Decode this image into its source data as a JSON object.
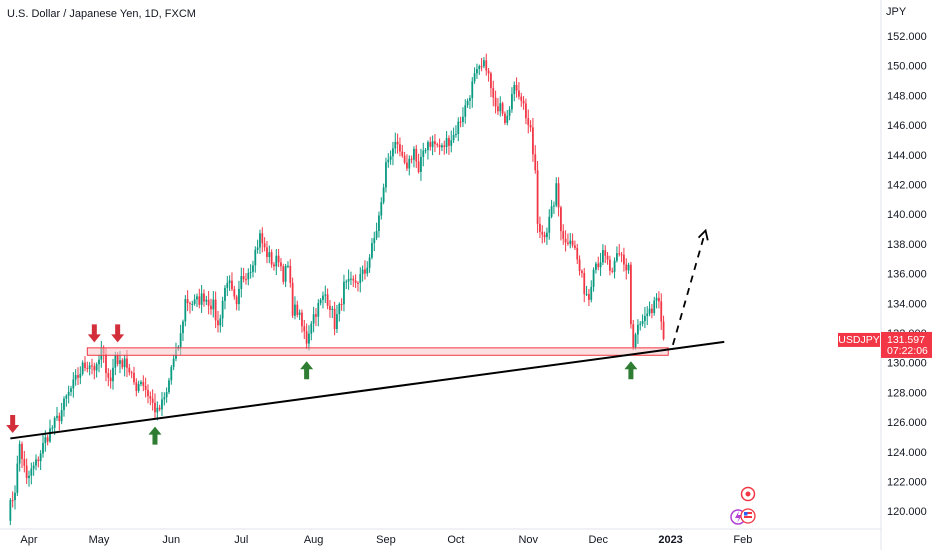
{
  "chart_data": {
    "type": "candlestick",
    "title": "U.S. Dollar / Japanese Yen, 1D, FXCM",
    "axis_unit": "JPY",
    "y_ticks": [
      "120.000",
      "122.000",
      "124.000",
      "126.000",
      "128.000",
      "130.000",
      "132.000",
      "134.000",
      "136.000",
      "138.000",
      "140.000",
      "142.000",
      "144.000",
      "146.000",
      "148.000",
      "150.000",
      "152.000"
    ],
    "ylim": [
      118.7,
      153.6
    ],
    "x_ticks": [
      {
        "label": "Apr",
        "day": 9
      },
      {
        "label": "May",
        "day": 39
      },
      {
        "label": "Jun",
        "day": 70
      },
      {
        "label": "Jul",
        "day": 100
      },
      {
        "label": "Aug",
        "day": 131
      },
      {
        "label": "Sep",
        "day": 162
      },
      {
        "label": "Oct",
        "day": 192
      },
      {
        "label": "Nov",
        "day": 223
      },
      {
        "label": "Dec",
        "day": 253
      },
      {
        "label": "2023",
        "day": 284,
        "bold": true
      },
      {
        "label": "Feb",
        "day": 315
      }
    ],
    "xlim": [
      0,
      325
    ],
    "grid": false,
    "price_label": {
      "symbol": "USDJPY",
      "value": "131.597",
      "countdown": "07:22:06",
      "price": 131.6
    },
    "series_path": [
      [
        0,
        119.8
      ],
      [
        3,
        121.5
      ],
      [
        5,
        124.5
      ],
      [
        8,
        122.0
      ],
      [
        10,
        122.7
      ],
      [
        12,
        123.2
      ],
      [
        16,
        124.8
      ],
      [
        18,
        125.4
      ],
      [
        22,
        126.4
      ],
      [
        25,
        127.6
      ],
      [
        28,
        128.5
      ],
      [
        32,
        129.7
      ],
      [
        35,
        130.0
      ],
      [
        38,
        129.5
      ],
      [
        40,
        130.8
      ],
      [
        42,
        129.7
      ],
      [
        44,
        128.7
      ],
      [
        46,
        130.6
      ],
      [
        48,
        129.8
      ],
      [
        50,
        130.4
      ],
      [
        52,
        129.2
      ],
      [
        55,
        128.4
      ],
      [
        57,
        128.9
      ],
      [
        60,
        127.9
      ],
      [
        62,
        127.2
      ],
      [
        64,
        126.6
      ],
      [
        66,
        127.2
      ],
      [
        68,
        127.9
      ],
      [
        70,
        129.7
      ],
      [
        72,
        130.5
      ],
      [
        74,
        131.8
      ],
      [
        76,
        134.2
      ],
      [
        80,
        134.0
      ],
      [
        84,
        134.5
      ],
      [
        88,
        133.8
      ],
      [
        90,
        132.4
      ],
      [
        92,
        134.2
      ],
      [
        94,
        135.7
      ],
      [
        96,
        134.6
      ],
      [
        98,
        133.6
      ],
      [
        100,
        135.6
      ],
      [
        104,
        136.5
      ],
      [
        108,
        138.5
      ],
      [
        110,
        137.6
      ],
      [
        114,
        136.6
      ],
      [
        116,
        137.1
      ],
      [
        118,
        135.9
      ],
      [
        120,
        136.4
      ],
      [
        122,
        133.6
      ],
      [
        124,
        133.5
      ],
      [
        126,
        132.4
      ],
      [
        128,
        131.5
      ],
      [
        130,
        132.9
      ],
      [
        132,
        133.5
      ],
      [
        136,
        134.6
      ],
      [
        138,
        133.9
      ],
      [
        140,
        132.6
      ],
      [
        142,
        133.6
      ],
      [
        144,
        135.1
      ],
      [
        148,
        135.3
      ],
      [
        150,
        135.6
      ],
      [
        153,
        136.1
      ],
      [
        156,
        137.7
      ],
      [
        158,
        139.0
      ],
      [
        160,
        140.6
      ],
      [
        162,
        143.3
      ],
      [
        165,
        144.6
      ],
      [
        168,
        144.1
      ],
      [
        170,
        143.1
      ],
      [
        172,
        143.6
      ],
      [
        174,
        144.4
      ],
      [
        176,
        142.6
      ],
      [
        178,
        144.3
      ],
      [
        180,
        144.9
      ],
      [
        183,
        144.7
      ],
      [
        186,
        144.4
      ],
      [
        188,
        144.9
      ],
      [
        191,
        145.3
      ],
      [
        194,
        146.4
      ],
      [
        196,
        147.2
      ],
      [
        198,
        148.2
      ],
      [
        200,
        149.2
      ],
      [
        203,
        149.8
      ],
      [
        205,
        150.1
      ],
      [
        207,
        148.4
      ],
      [
        209,
        146.9
      ],
      [
        211,
        147.8
      ],
      [
        213,
        146.5
      ],
      [
        216,
        148.0
      ],
      [
        218,
        148.6
      ],
      [
        220,
        147.9
      ],
      [
        222,
        146.7
      ],
      [
        224,
        145.4
      ],
      [
        226,
        142.8
      ],
      [
        227,
        139.1
      ],
      [
        229,
        138.7
      ],
      [
        231,
        139.0
      ],
      [
        233,
        140.1
      ],
      [
        235,
        141.7
      ],
      [
        237,
        139.2
      ],
      [
        239,
        138.0
      ],
      [
        241,
        138.6
      ],
      [
        243,
        137.6
      ],
      [
        245,
        136.2
      ],
      [
        247,
        135.0
      ],
      [
        249,
        134.4
      ],
      [
        251,
        136.7
      ],
      [
        253,
        136.8
      ],
      [
        255,
        137.2
      ],
      [
        257,
        136.7
      ],
      [
        259,
        135.8
      ],
      [
        261,
        137.1
      ],
      [
        263,
        137.2
      ],
      [
        265,
        136.3
      ],
      [
        266,
        136.6
      ],
      [
        267,
        132.6
      ],
      [
        268,
        131.0
      ],
      [
        270,
        132.4
      ],
      [
        272,
        132.6
      ],
      [
        274,
        133.0
      ],
      [
        276,
        133.4
      ],
      [
        277,
        134.2
      ],
      [
        279,
        133.7
      ],
      [
        280,
        132.9
      ],
      [
        281,
        131.6
      ]
    ],
    "annotations": {
      "support_zone": {
        "day_start": 34,
        "day_end": 283,
        "price_low": 130.5,
        "price_high": 131.0
      },
      "trendline": {
        "day_start": 1,
        "price_start": 124.9,
        "day_end": 307,
        "price_end": 131.4
      },
      "forecast_arrow": {
        "day_start": 285,
        "price_start": 131.2,
        "day_end": 299,
        "price_end": 138.9
      },
      "red_arrows": [
        {
          "day": 2,
          "price": 125.0
        },
        {
          "day": 37,
          "price": 131.1
        },
        {
          "day": 47,
          "price": 131.1
        }
      ],
      "green_arrows": [
        {
          "day": 63,
          "price": 126.1
        },
        {
          "day": 128,
          "price": 130.5
        },
        {
          "day": 267,
          "price": 130.5
        }
      ]
    },
    "colors": {
      "up": "#089981",
      "down": "#f23645",
      "zone_fill": "#f7c6cb",
      "zone_stroke": "#f23645",
      "red_arrow": "#d32f3a",
      "green_arrow": "#2e7d32",
      "line": "#000000"
    }
  }
}
